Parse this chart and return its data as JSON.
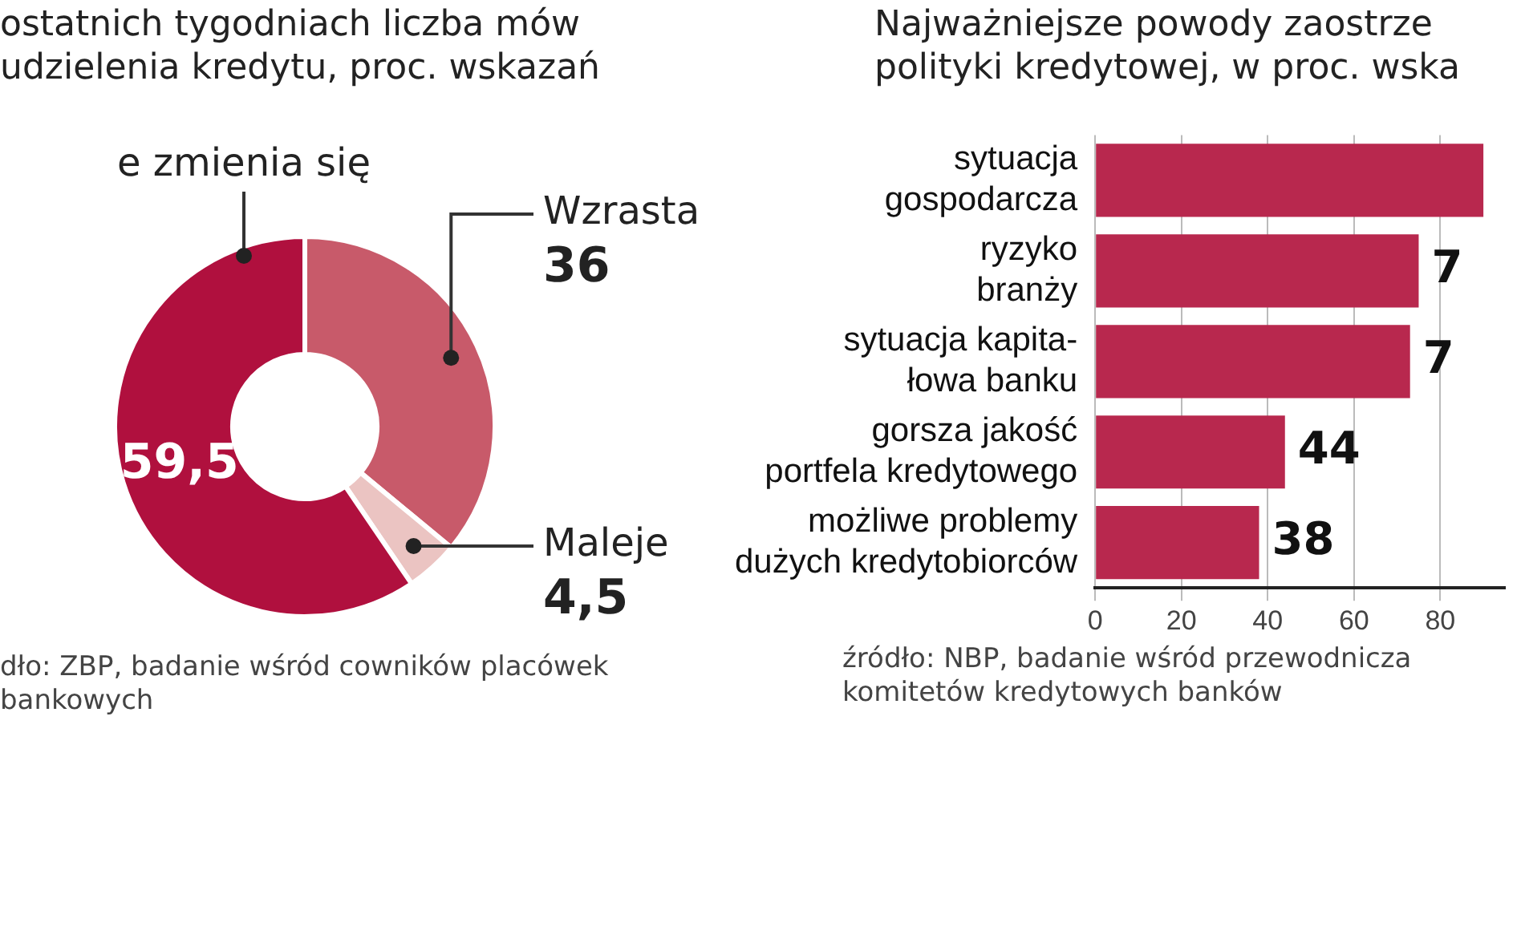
{
  "chart_data": [
    {
      "type": "donut",
      "title": "ostatnich tygodniach liczba mów udzielenia kredytu, proc. wskazań",
      "categories": [
        "Wzrasta",
        "Maleje",
        "e zmienia się"
      ],
      "values": [
        36,
        4.5,
        59.5
      ],
      "colors": [
        "#c85a6a",
        "#ebc4c2",
        "#b0103e"
      ],
      "value_labels": [
        "36",
        "4,5",
        "59,5"
      ],
      "annotations": [
        "dło: ZBP, badanie wśród cowników placówek bankowych"
      ]
    },
    {
      "type": "bar",
      "orientation": "horizontal",
      "title": "Najważniejsze powody zaostrze polityki kredytowej, w proc. wska",
      "categories": [
        "sytuacja gospodarcza",
        "ryzyko branży",
        "sytuacja kapita- łowa banku",
        "gorsza jakość portfela kredytowego",
        "możliwe problemy dużych kredytobiorców"
      ],
      "values": [
        90,
        75,
        73,
        44,
        38
      ],
      "color": "#b8284e",
      "value_labels": [
        null,
        null,
        null,
        "44",
        "38"
      ],
      "xlim": [
        0,
        95
      ],
      "xticks": [
        0,
        20,
        40,
        60,
        80
      ],
      "grid": "x",
      "annotations": [
        {
          "text": "7",
          "x": 75,
          "y": "ryzyko branży"
        },
        {
          "text": "7",
          "x": 73,
          "y": "sytuacja kapita- łowa banku"
        },
        "źródło: NBP, badanie wśród przewodnicza komitetów kredytowych banków"
      ]
    }
  ]
}
